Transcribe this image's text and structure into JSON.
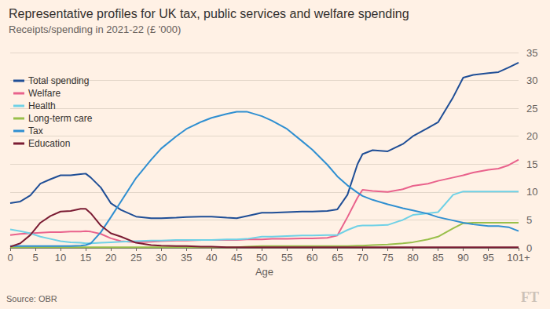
{
  "chart_data": {
    "type": "line",
    "title": "Representative profiles for UK tax, public services and welfare spending",
    "subtitle": "Receipts/spending in 2021-22 (£ '000)",
    "x_label": "Age",
    "source": "Source: OBR",
    "logo": "FT",
    "x": [
      0,
      2,
      4,
      6,
      8,
      10,
      12,
      14,
      15,
      16,
      18,
      20,
      22,
      25,
      28,
      30,
      33,
      35,
      38,
      40,
      43,
      45,
      47,
      50,
      52,
      55,
      58,
      60,
      63,
      65,
      67,
      69,
      70,
      72,
      75,
      78,
      80,
      83,
      85,
      88,
      90,
      92,
      95,
      97,
      99,
      101
    ],
    "series": [
      {
        "name": "Total spending",
        "color": "#1f4e96",
        "values": [
          8.0,
          8.3,
          9.4,
          11.5,
          12.3,
          13.0,
          13.0,
          13.2,
          13.3,
          12.6,
          10.8,
          8.0,
          6.8,
          5.6,
          5.3,
          5.3,
          5.4,
          5.5,
          5.6,
          5.6,
          5.4,
          5.3,
          5.7,
          6.3,
          6.3,
          6.4,
          6.5,
          6.5,
          6.6,
          6.9,
          9.5,
          15.0,
          16.8,
          17.5,
          17.3,
          18.6,
          20.0,
          21.5,
          22.5,
          27.0,
          30.5,
          31.0,
          31.3,
          31.5,
          32.3,
          33.2
        ]
      },
      {
        "name": "Welfare",
        "color": "#e9628c",
        "values": [
          2.3,
          2.5,
          2.6,
          2.7,
          2.8,
          2.8,
          2.9,
          2.9,
          3.0,
          2.9,
          2.5,
          1.7,
          1.2,
          1.0,
          1.1,
          1.2,
          1.3,
          1.3,
          1.4,
          1.4,
          1.4,
          1.4,
          1.5,
          1.5,
          1.6,
          1.6,
          1.7,
          1.7,
          1.8,
          2.2,
          5.5,
          9.0,
          10.4,
          10.2,
          10.0,
          10.5,
          11.1,
          11.5,
          12.0,
          12.6,
          13.0,
          13.5,
          14.0,
          14.2,
          14.8,
          15.8
        ]
      },
      {
        "name": "Health",
        "color": "#6fd1e6",
        "values": [
          3.3,
          3.0,
          2.6,
          2.0,
          1.6,
          1.2,
          1.0,
          0.9,
          0.8,
          0.8,
          0.9,
          1.0,
          1.1,
          1.2,
          1.3,
          1.3,
          1.4,
          1.4,
          1.4,
          1.4,
          1.5,
          1.5,
          1.6,
          2.0,
          2.0,
          2.1,
          2.2,
          2.2,
          2.3,
          2.3,
          3.2,
          3.9,
          4.0,
          4.0,
          4.1,
          5.0,
          5.9,
          6.2,
          6.4,
          9.5,
          10.1,
          10.1,
          10.1,
          10.1,
          10.1,
          10.1
        ]
      },
      {
        "name": "Long-term care",
        "color": "#99bf4a",
        "values": [
          0.1,
          0.1,
          0.1,
          0.1,
          0.1,
          0.1,
          0.1,
          0.1,
          0.1,
          0.1,
          0.1,
          0.1,
          0.1,
          0.1,
          0.1,
          0.1,
          0.1,
          0.1,
          0.1,
          0.1,
          0.1,
          0.1,
          0.2,
          0.3,
          0.3,
          0.3,
          0.3,
          0.3,
          0.3,
          0.3,
          0.3,
          0.4,
          0.4,
          0.5,
          0.6,
          0.8,
          1.0,
          1.5,
          2.0,
          3.5,
          4.4,
          4.5,
          4.5,
          4.5,
          4.5,
          4.5
        ]
      },
      {
        "name": "Tax",
        "color": "#2f8fd1",
        "values": [
          0.3,
          0.3,
          0.3,
          0.3,
          0.3,
          0.3,
          0.3,
          0.4,
          0.5,
          0.8,
          2.8,
          5.5,
          8.3,
          12.5,
          15.8,
          17.8,
          20.0,
          21.3,
          22.6,
          23.3,
          24.0,
          24.4,
          24.4,
          23.6,
          22.8,
          21.3,
          19.1,
          17.6,
          14.9,
          12.8,
          11.2,
          9.9,
          9.3,
          8.6,
          7.8,
          7.1,
          6.7,
          6.1,
          5.5,
          4.9,
          4.5,
          4.2,
          3.9,
          3.9,
          3.7,
          3.0
        ]
      },
      {
        "name": "Education",
        "color": "#7b1c33",
        "values": [
          0.2,
          0.8,
          2.3,
          4.5,
          5.7,
          6.5,
          6.6,
          7.0,
          7.0,
          6.2,
          4.0,
          2.6,
          2.0,
          0.9,
          0.5,
          0.4,
          0.3,
          0.3,
          0.2,
          0.2,
          0.1,
          0.1,
          0.1,
          0.1,
          0.1,
          0.1,
          0.1,
          0.1,
          0.1,
          0.1,
          0.1,
          0.1,
          0.1,
          0.1,
          0.1,
          0.1,
          0.1,
          0.1,
          0.1,
          0.1,
          0.1,
          0.1,
          0.1,
          0.1,
          0.1,
          0.1
        ]
      }
    ],
    "xlim": [
      0,
      101
    ],
    "xticks": [
      0,
      5,
      10,
      15,
      20,
      25,
      30,
      35,
      40,
      45,
      50,
      55,
      60,
      65,
      70,
      75,
      80,
      85,
      90,
      95,
      {
        "value": 101,
        "label": "101+"
      }
    ],
    "ylim": [
      0,
      35
    ],
    "yticks": [
      0,
      5,
      10,
      15,
      20,
      25,
      30,
      35
    ],
    "grid": true,
    "legend": "upper left"
  }
}
